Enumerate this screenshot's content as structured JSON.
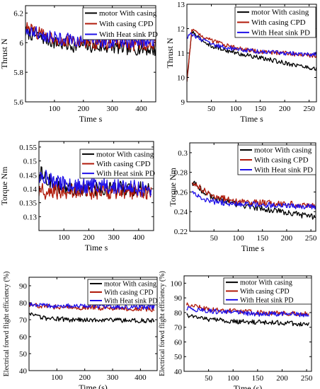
{
  "chart_data": [
    {
      "type": "line",
      "xlabel": "Time s",
      "ylabel": "Thrust N",
      "xlim": [
        0,
        450
      ],
      "ylim": [
        5.6,
        6.25
      ],
      "xticks": [
        100,
        200,
        300,
        400
      ],
      "yticks": [
        5.6,
        5.8,
        6,
        6.2
      ],
      "ytick_labels": [
        "5.6",
        "5.8",
        "6",
        "6.2"
      ],
      "legend_position": "top-right",
      "series": [
        {
          "name": "motor With casing",
          "color": "#000000",
          "x": [
            0,
            50,
            100,
            150,
            200,
            250,
            300,
            350,
            400,
            450
          ],
          "y": [
            6.07,
            6.04,
            6.0,
            5.98,
            5.98,
            5.97,
            5.97,
            5.96,
            5.96,
            5.95
          ]
        },
        {
          "name": "With casing CPD",
          "color": "#b01a0a",
          "x": [
            0,
            50,
            100,
            150,
            200,
            250,
            300,
            350,
            400,
            450
          ],
          "y": [
            6.1,
            6.06,
            6.03,
            6.01,
            6.0,
            6.0,
            5.99,
            5.99,
            5.99,
            5.99
          ]
        },
        {
          "name": "With Heat sink PD",
          "color": "#1f10e8",
          "x": [
            0,
            50,
            100,
            150,
            200,
            250,
            300,
            350,
            400,
            450
          ],
          "y": [
            6.08,
            6.06,
            6.03,
            6.02,
            6.01,
            6.01,
            6.01,
            6.01,
            6.01,
            6.01
          ]
        }
      ]
    },
    {
      "type": "line",
      "xlabel": "Time s",
      "ylabel": "Thrust N",
      "xlim": [
        0,
        265
      ],
      "ylim": [
        9,
        13
      ],
      "xticks": [
        50,
        100,
        150,
        200,
        250
      ],
      "yticks": [
        9,
        10,
        11,
        12,
        13
      ],
      "ytick_labels": [
        "9",
        "10",
        "11",
        "12",
        "13"
      ],
      "legend_position": "top-right",
      "series": [
        {
          "name": "motor With casing",
          "color": "#000000",
          "x": [
            0,
            10,
            25,
            50,
            100,
            150,
            200,
            250,
            265
          ],
          "y": [
            9.8,
            11.9,
            11.6,
            11.3,
            11.0,
            10.8,
            10.6,
            10.4,
            10.35
          ]
        },
        {
          "name": "With casing CPD",
          "color": "#b01a0a",
          "x": [
            0,
            10,
            25,
            50,
            100,
            150,
            200,
            250,
            265
          ],
          "y": [
            9.8,
            12.0,
            11.8,
            11.5,
            11.2,
            11.05,
            11.0,
            10.9,
            10.9
          ]
        },
        {
          "name": "With Heat sink PD",
          "color": "#1f10e8",
          "x": [
            0,
            10,
            25,
            50,
            100,
            150,
            200,
            250,
            265
          ],
          "y": [
            11.6,
            11.8,
            11.6,
            11.35,
            11.15,
            11.05,
            11.0,
            10.95,
            10.95
          ]
        }
      ]
    },
    {
      "type": "line",
      "xlabel": "Time s",
      "ylabel": "Torque Nm",
      "xlim": [
        0,
        460
      ],
      "ylim": [
        0.125,
        0.157
      ],
      "xticks": [
        100,
        200,
        300,
        400
      ],
      "yticks": [
        0.13,
        0.135,
        0.14,
        0.145,
        0.15,
        0.155
      ],
      "ytick_labels": [
        "0.13",
        "0.135",
        "0.14",
        "0.145",
        "0.15",
        "0.155"
      ],
      "legend_position": "top-right",
      "series": [
        {
          "name": "motor With casing",
          "color": "#000000",
          "x": [
            0,
            25,
            50,
            100,
            150,
            200,
            250,
            300,
            350,
            400,
            450
          ],
          "y": [
            0.146,
            0.144,
            0.142,
            0.14,
            0.14,
            0.14,
            0.14,
            0.14,
            0.14,
            0.14,
            0.14
          ]
        },
        {
          "name": "With casing CPD",
          "color": "#b01a0a",
          "x": [
            0,
            25,
            50,
            100,
            150,
            200,
            250,
            300,
            350,
            400,
            450
          ],
          "y": [
            0.14,
            0.139,
            0.139,
            0.139,
            0.139,
            0.139,
            0.139,
            0.139,
            0.139,
            0.139,
            0.139
          ]
        },
        {
          "name": "With Heat sink PD",
          "color": "#1f10e8",
          "x": [
            0,
            25,
            50,
            100,
            150,
            200,
            250,
            300,
            350,
            400,
            450
          ],
          "y": [
            0.145,
            0.144,
            0.143,
            0.142,
            0.141,
            0.141,
            0.141,
            0.141,
            0.141,
            0.14,
            0.14
          ]
        }
      ]
    },
    {
      "type": "line",
      "xlabel": "Time s",
      "ylabel": "Torque Nm",
      "xlim": [
        0,
        260
      ],
      "ylim": [
        0.22,
        0.31
      ],
      "xticks": [
        50,
        100,
        150,
        200,
        250
      ],
      "yticks": [
        0.22,
        0.24,
        0.26,
        0.28,
        0.3
      ],
      "ytick_labels": [
        "0.22",
        "0.24",
        "0.26",
        "0.28",
        "0.3"
      ],
      "legend_position": "top-right",
      "series": [
        {
          "name": "motor With casing",
          "color": "#000000",
          "x": [
            5,
            10,
            25,
            50,
            100,
            150,
            200,
            250,
            260
          ],
          "y": [
            0.27,
            0.268,
            0.262,
            0.254,
            0.247,
            0.243,
            0.239,
            0.235,
            0.235
          ]
        },
        {
          "name": "With casing CPD",
          "color": "#b01a0a",
          "x": [
            5,
            10,
            25,
            50,
            100,
            150,
            200,
            250,
            260
          ],
          "y": [
            0.27,
            0.269,
            0.263,
            0.256,
            0.25,
            0.249,
            0.248,
            0.246,
            0.246
          ]
        },
        {
          "name": "With Heat sink PD",
          "color": "#1f10e8",
          "x": [
            5,
            10,
            25,
            50,
            100,
            150,
            200,
            250,
            260
          ],
          "y": [
            0.26,
            0.258,
            0.253,
            0.25,
            0.248,
            0.247,
            0.246,
            0.245,
            0.245
          ]
        }
      ]
    },
    {
      "type": "line",
      "xlabel": "Time (s)",
      "ylabel": "Electrical forwd flight efficiency (%)",
      "xlim": [
        0,
        460
      ],
      "ylim": [
        40,
        95
      ],
      "xticks": [
        100,
        200,
        300,
        400
      ],
      "yticks": [
        40,
        50,
        60,
        70,
        80,
        90
      ],
      "ytick_labels": [
        "40",
        "50",
        "60",
        "70",
        "80",
        "90"
      ],
      "legend_position": "top-right",
      "series": [
        {
          "name": "motor With casing",
          "color": "#000000",
          "x": [
            0,
            50,
            100,
            150,
            200,
            250,
            300,
            350,
            400,
            450
          ],
          "y": [
            73,
            71,
            70.5,
            70,
            70,
            70,
            70,
            69.5,
            69.5,
            69
          ]
        },
        {
          "name": "With casing CPD",
          "color": "#b01a0a",
          "x": [
            0,
            50,
            100,
            150,
            200,
            250,
            300,
            350,
            400,
            450
          ],
          "y": [
            79,
            78,
            77.5,
            77,
            77,
            77,
            76.5,
            76.5,
            76.5,
            76
          ]
        },
        {
          "name": "With Heat sink PD",
          "color": "#1f10e8",
          "x": [
            0,
            50,
            100,
            150,
            200,
            250,
            300,
            350,
            400,
            450
          ],
          "y": [
            79.5,
            78.5,
            78,
            78,
            78,
            78,
            77.5,
            77.5,
            77.5,
            77.5
          ]
        }
      ]
    },
    {
      "type": "line",
      "xlabel": "Time (s)",
      "ylabel": "Electrical forwd flight efficiency (%)",
      "xlim": [
        0,
        260
      ],
      "ylim": [
        40,
        105
      ],
      "xticks": [
        50,
        100,
        150,
        200,
        250
      ],
      "yticks": [
        40,
        50,
        60,
        70,
        80,
        90,
        100
      ],
      "ytick_labels": [
        "40",
        "50",
        "60",
        "70",
        "80",
        "90",
        "100"
      ],
      "legend_position": "top-right",
      "series": [
        {
          "name": "motor With casing",
          "color": "#000000",
          "x": [
            5,
            10,
            25,
            50,
            100,
            150,
            200,
            250,
            255
          ],
          "y": [
            80,
            78,
            77,
            75.5,
            74,
            73.5,
            73,
            72,
            72
          ]
        },
        {
          "name": "With casing CPD",
          "color": "#b01a0a",
          "x": [
            5,
            10,
            25,
            50,
            100,
            150,
            200,
            250,
            255
          ],
          "y": [
            86,
            85,
            84,
            82,
            81,
            80,
            79.5,
            79,
            79
          ]
        },
        {
          "name": "With Heat sink PD",
          "color": "#1f10e8",
          "x": [
            5,
            10,
            25,
            50,
            100,
            150,
            200,
            250,
            255
          ],
          "y": [
            83,
            83,
            82,
            81,
            80,
            79,
            79,
            78.5,
            78.5
          ]
        }
      ]
    }
  ]
}
